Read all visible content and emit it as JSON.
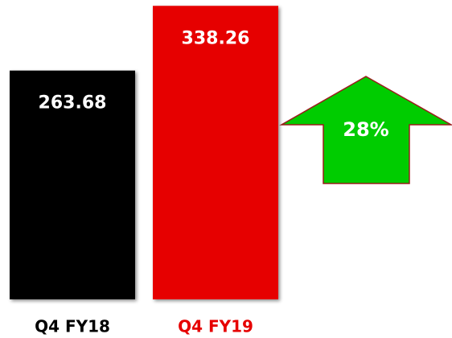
{
  "chart_data": {
    "type": "bar",
    "categories": [
      "Q4 FY18",
      "Q4 FY19"
    ],
    "values": [
      263.68,
      338.26
    ],
    "colors": [
      "#000000",
      "#e60000"
    ],
    "category_label_colors": [
      "#000000",
      "#e60000"
    ],
    "ylim": [
      0,
      345
    ],
    "annotation": "28%",
    "annotation_color": "#00cc00"
  }
}
